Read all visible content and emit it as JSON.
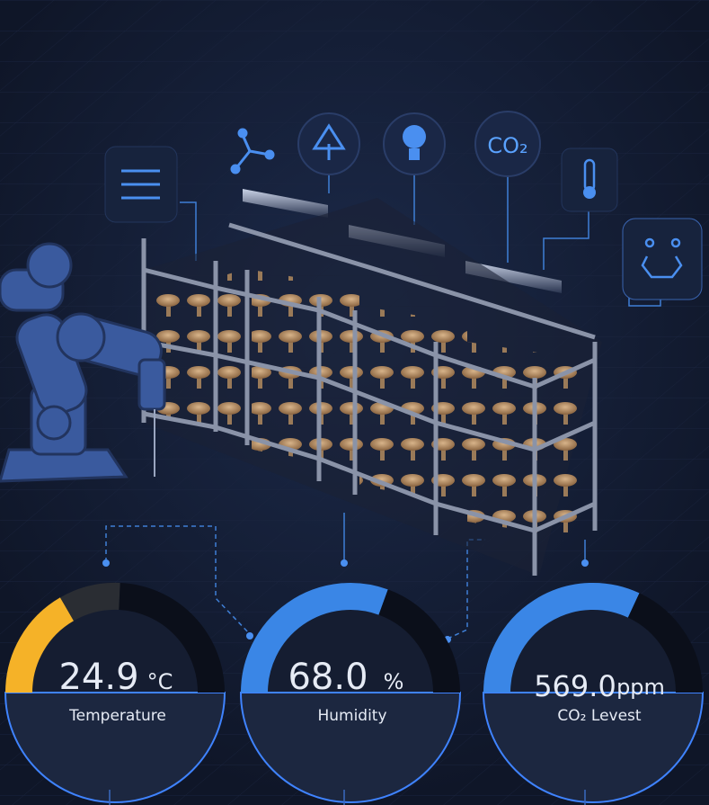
{
  "icons": {
    "co2": "CO₂"
  },
  "gauges": [
    {
      "value": "24.9",
      "unit": "°C",
      "label": "Temperature"
    },
    {
      "value": "68.0",
      "unit": "%",
      "label": "Humidity"
    },
    {
      "value": "569.0",
      "unit": "ppm",
      "label": "CO₂ Levest"
    }
  ]
}
